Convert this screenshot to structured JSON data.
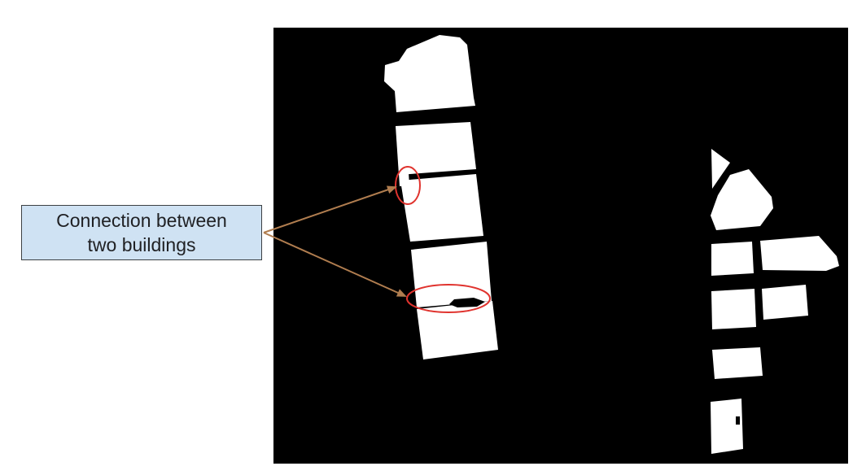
{
  "annotation": {
    "label": "Connection between\ntwo buildings"
  },
  "colors": {
    "mask_background": "#000000",
    "building": "#ffffff",
    "highlight_ellipse": "#e0332e",
    "arrow": "#b07d4f",
    "callout_fill": "#cfe2f3",
    "callout_border": "#3c4043"
  },
  "figure": {
    "type": "binary-segmentation-mask",
    "left_building_column_count": 5,
    "right_building_cluster_count": 9,
    "highlighted_connections": 2
  }
}
